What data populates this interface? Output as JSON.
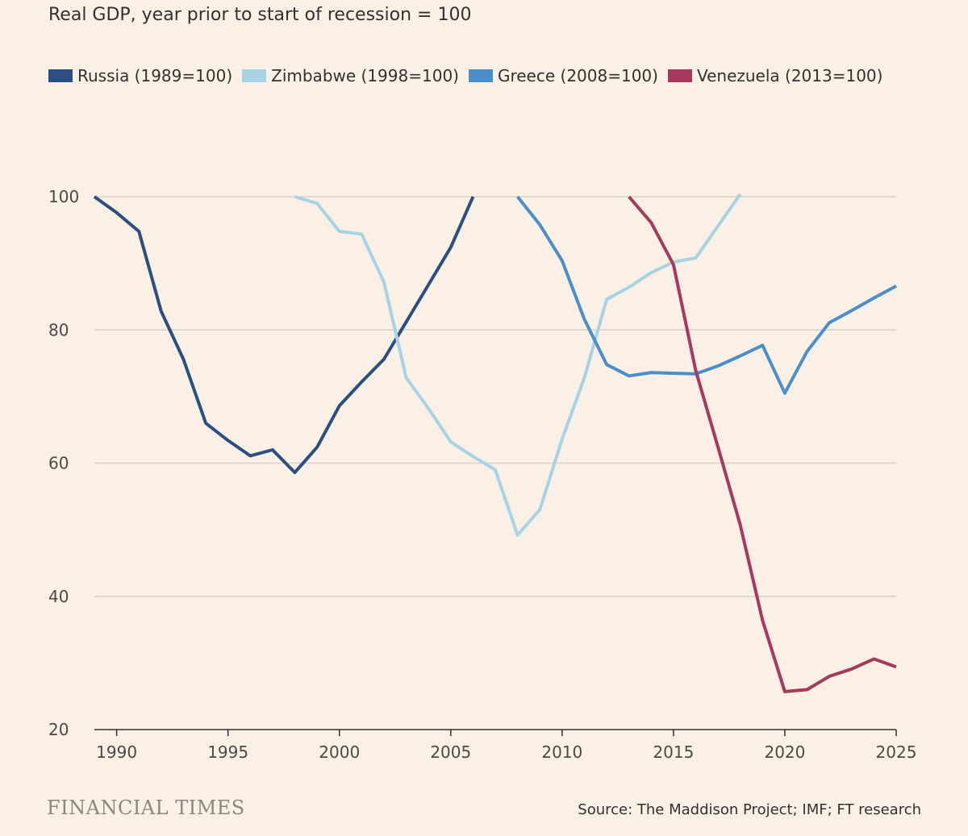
{
  "chart_data": {
    "type": "line",
    "title": "",
    "subtitle": "Real GDP, year prior to start of recession = 100",
    "xlabel": "",
    "ylabel": "",
    "xlim": [
      1989,
      2025
    ],
    "ylim": [
      20,
      100
    ],
    "x_ticks": [
      1990,
      1995,
      2000,
      2005,
      2010,
      2015,
      2020,
      2025
    ],
    "y_ticks": [
      20,
      40,
      60,
      80,
      100
    ],
    "grid": true,
    "legend_position": "top-left",
    "series": [
      {
        "name": "Russia (1989=100)",
        "color": "#2b4f81",
        "x": [
          1989,
          1990,
          1991,
          1992,
          1993,
          1994,
          1995,
          1996,
          1997,
          1998,
          1999,
          2000,
          2001,
          2002,
          2003,
          2004,
          2005,
          2006
        ],
        "y": [
          100,
          97.6,
          94.8,
          82.8,
          75.6,
          66.0,
          63.4,
          61.1,
          62.0,
          58.6,
          62.4,
          68.6,
          72.2,
          75.6,
          81.2,
          86.8,
          92.4,
          100
        ]
      },
      {
        "name": "Zimbabwe (1998=100)",
        "color": "#a7d3e4",
        "x": [
          1998,
          1999,
          2000,
          2001,
          2002,
          2003,
          2004,
          2005,
          2006,
          2007,
          2008,
          2009,
          2010,
          2011,
          2012,
          2013,
          2014,
          2015,
          2016,
          2017,
          2018
        ],
        "y": [
          100,
          99.0,
          94.8,
          94.4,
          87.2,
          72.8,
          68.2,
          63.2,
          61.0,
          59.0,
          49.2,
          53.0,
          63.6,
          72.8,
          84.6,
          86.4,
          88.6,
          90.2,
          90.8,
          95.6,
          100.4
        ]
      },
      {
        "name": "Greece (2008=100)",
        "color": "#4a8fc9",
        "x": [
          2008,
          2009,
          2010,
          2011,
          2012,
          2013,
          2014,
          2015,
          2016,
          2017,
          2018,
          2019,
          2020,
          2021,
          2022,
          2023,
          2024,
          2025
        ],
        "y": [
          100,
          95.8,
          90.4,
          81.6,
          74.8,
          73.1,
          73.6,
          73.5,
          73.4,
          74.6,
          76.1,
          77.7,
          70.5,
          76.8,
          81.1,
          82.9,
          84.8,
          86.6
        ]
      },
      {
        "name": "Venezuela (2013=100)",
        "color": "#a6395d",
        "x": [
          2013,
          2014,
          2015,
          2016,
          2017,
          2018,
          2019,
          2020,
          2021,
          2022,
          2023,
          2024,
          2025
        ],
        "y": [
          100,
          96.1,
          89.8,
          73.9,
          62.4,
          50.7,
          36.4,
          25.7,
          26.0,
          28.0,
          29.1,
          30.6,
          29.4
        ]
      }
    ]
  },
  "branding": {
    "logo_text": "FINANCIAL TIMES"
  },
  "source": "Source: The Maddison Project; IMF; FT research",
  "colors": {
    "background": "#fbf0e6",
    "grid": "#dad1c7"
  }
}
